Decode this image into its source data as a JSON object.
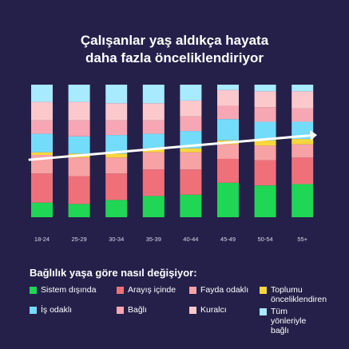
{
  "title_line1": "Çalışanlar yaş aldıkça hayata",
  "title_line2": "daha fazla önceliklendiriyor",
  "chart_data": {
    "type": "bar",
    "stacked": true,
    "normalized": true,
    "categories": [
      "18-24",
      "25-29",
      "30-34",
      "35-39",
      "40-44",
      "45-49",
      "50-54",
      "55+"
    ],
    "series": [
      {
        "name": "Sistem dışında",
        "color": "#1fd655",
        "values": [
          11,
          10,
          13,
          16,
          17,
          26,
          24,
          25
        ]
      },
      {
        "name": "Arayış içinde",
        "color": "#f0707a",
        "values": [
          22,
          21,
          20,
          20,
          19,
          18,
          19,
          20
        ]
      },
      {
        "name": "Fayda odaklı",
        "color": "#f7a2a5",
        "values": [
          14,
          14,
          12,
          13,
          13,
          11,
          11,
          10
        ]
      },
      {
        "name": "Toplumu önceliklendiren",
        "color": "#f9d73c",
        "values": [
          2,
          3,
          3,
          3,
          3,
          3,
          4,
          4
        ]
      },
      {
        "name": "İş odaklı",
        "color": "#74dcfb",
        "values": [
          14,
          13,
          14,
          11,
          13,
          16,
          14,
          13
        ]
      },
      {
        "name": "Bağlı",
        "color": "#f6a7b3",
        "values": [
          10,
          12,
          11,
          10,
          11,
          10,
          11,
          10
        ]
      },
      {
        "name": "Kuralcı",
        "color": "#fbc8cc",
        "values": [
          14,
          14,
          13,
          13,
          12,
          12,
          12,
          13
        ]
      },
      {
        "name": "Tüm yönleriyle bağlı",
        "color": "#a8eaff",
        "values": [
          13,
          13,
          14,
          14,
          12,
          4,
          5,
          5
        ]
      }
    ],
    "trend_arrow": true,
    "ylim": [
      0,
      100
    ]
  },
  "legend": {
    "title": "Bağlılık yaşa göre nasıl değişiyor:",
    "items": [
      {
        "label": "Sistem dışında",
        "color": "#1fd655"
      },
      {
        "label": "Arayış içinde",
        "color": "#f0707a"
      },
      {
        "label": "Fayda odaklı",
        "color": "#f7a2a5"
      },
      {
        "label": "Toplumu önceliklendiren",
        "color": "#f9d73c"
      },
      {
        "label": "İş odaklı",
        "color": "#74dcfb"
      },
      {
        "label": "Bağlı",
        "color": "#f6a7b3"
      },
      {
        "label": "Kuralcı",
        "color": "#fbc8cc"
      },
      {
        "label": "Tüm yönleriyle bağlı",
        "color": "#a8eaff"
      }
    ]
  }
}
